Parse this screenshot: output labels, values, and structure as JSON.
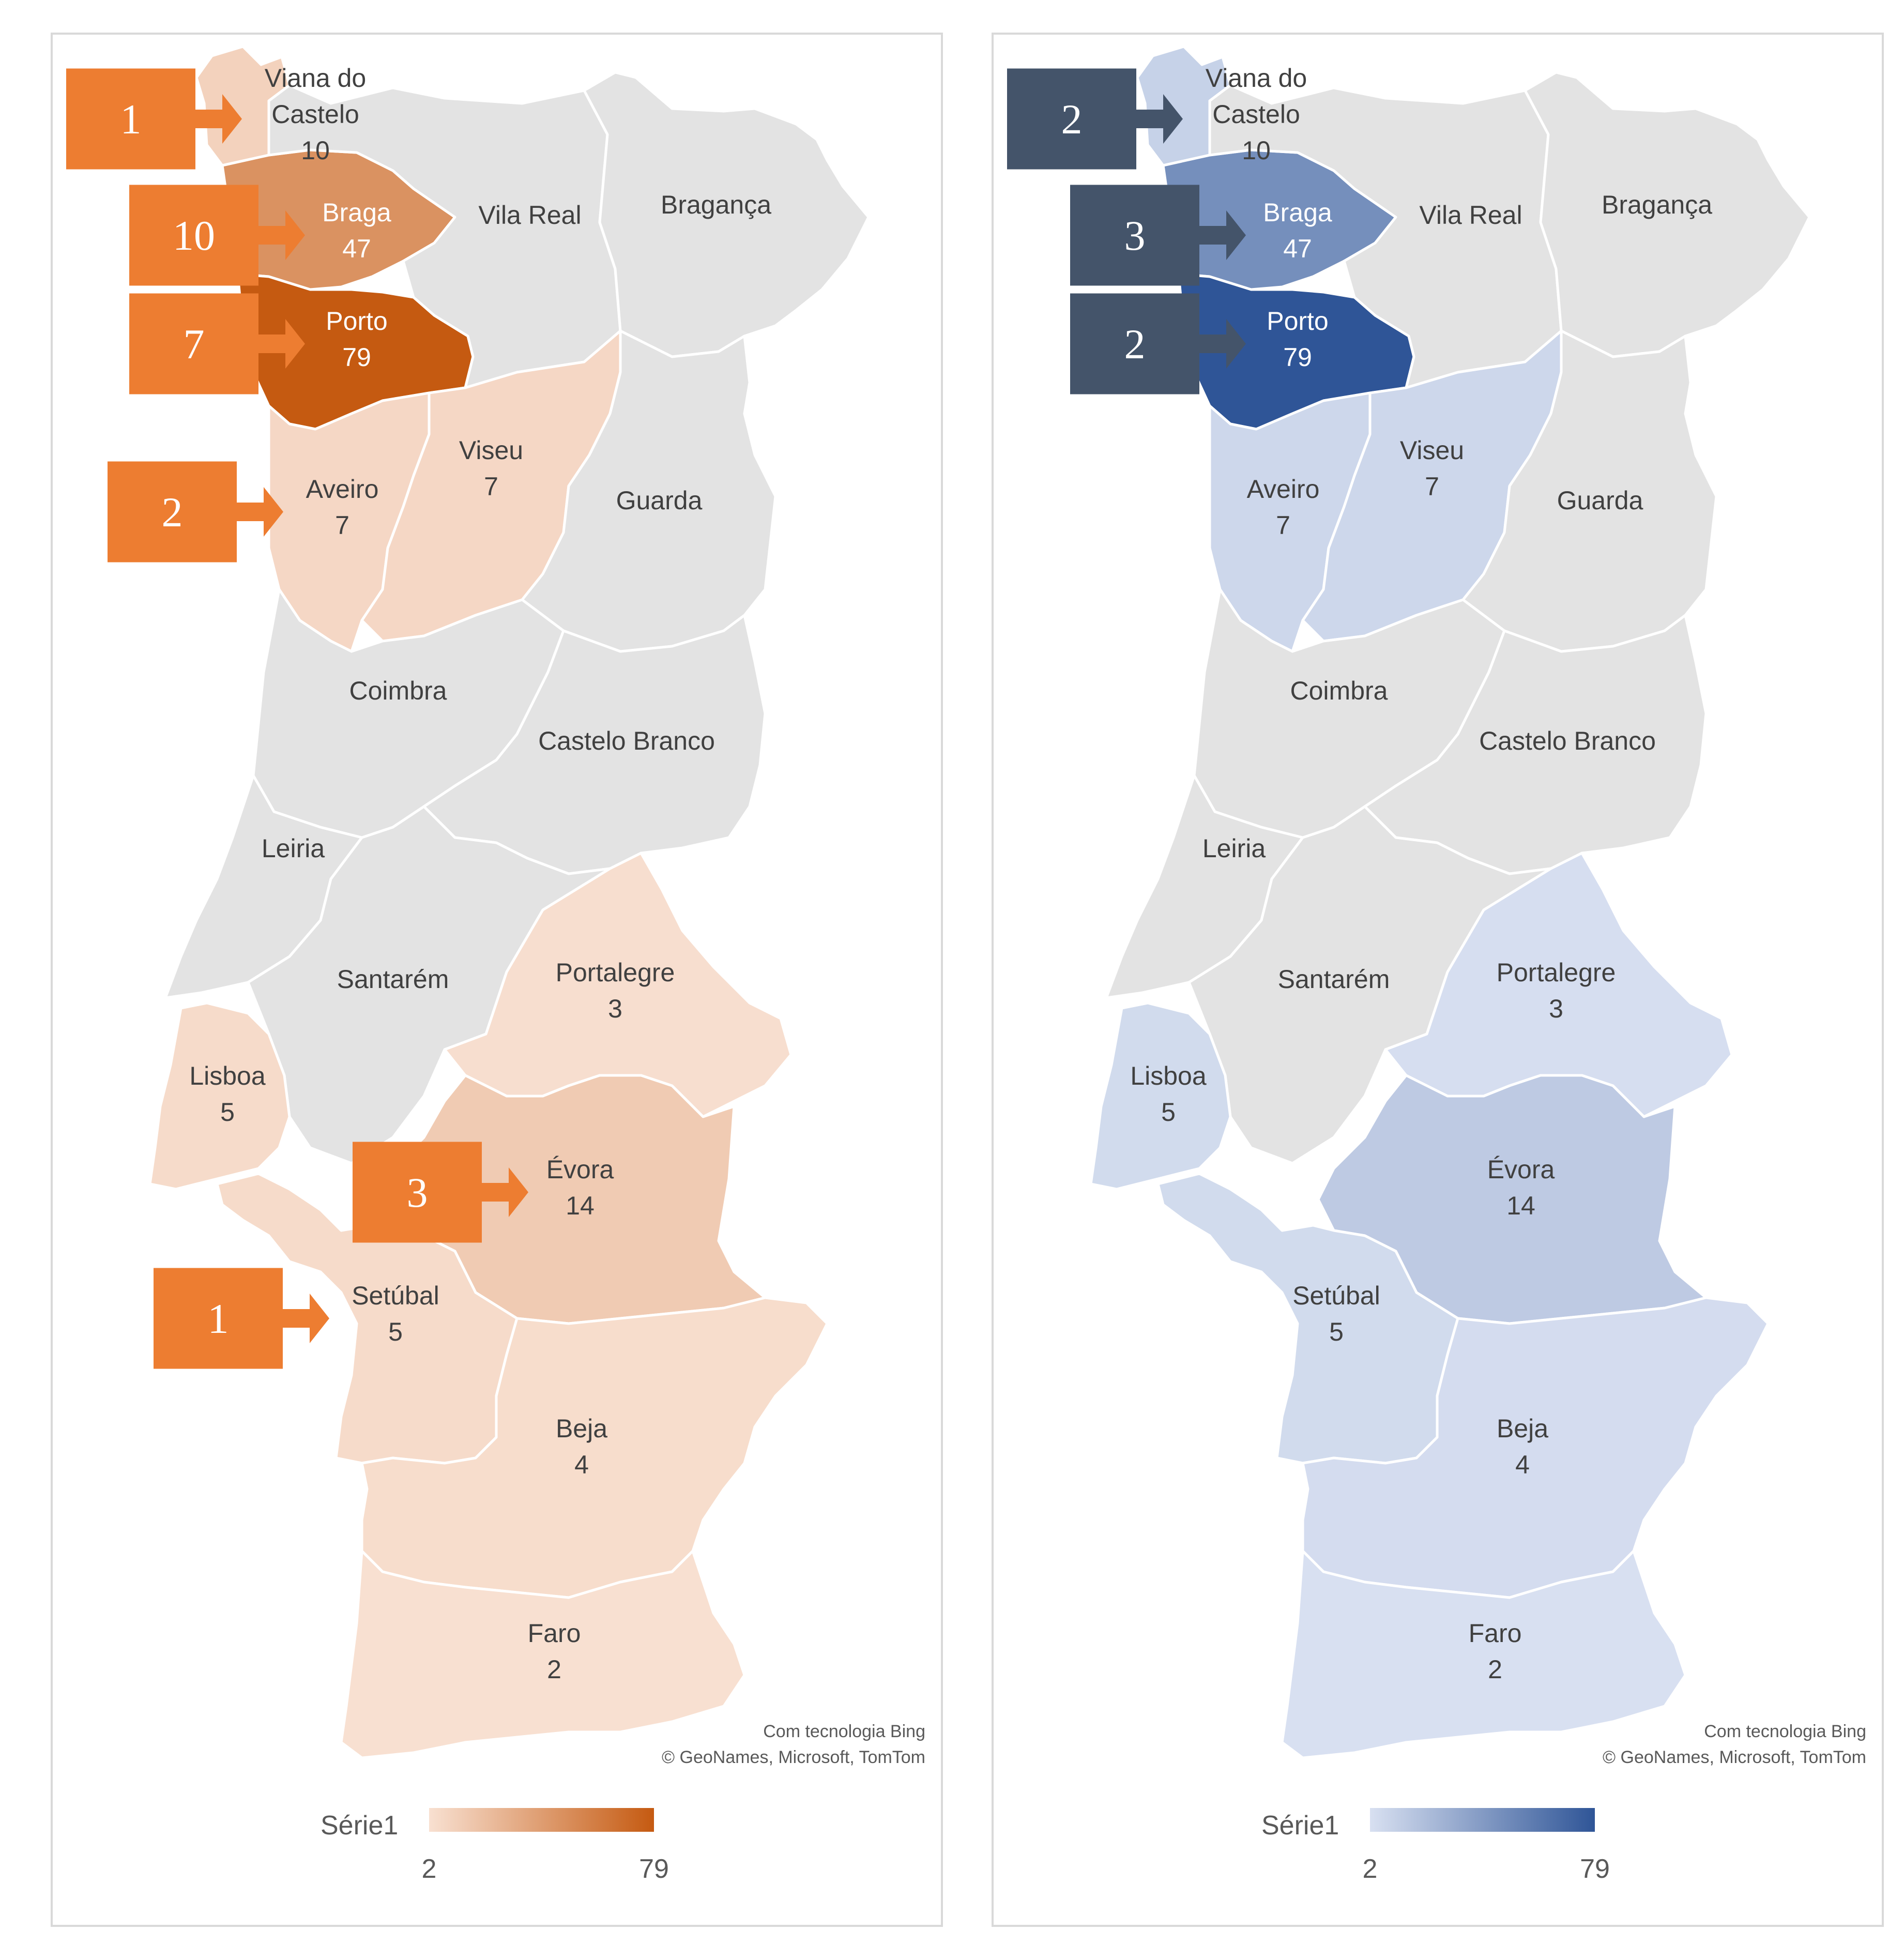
{
  "colors": {
    "no_data": "#e3e3e3",
    "border": "#ffffff",
    "orange_low": "#f8e0d1",
    "orange_high": "#c55a11",
    "blue_low": "#d8e0f1",
    "blue_high": "#2f5597",
    "orange_callout": "#ed7d31",
    "blue_callout": "#44546a",
    "frame": "#d9d9d9"
  },
  "legend": {
    "series_name": "Série1",
    "min_label": "2",
    "max_label": "79",
    "min": 2,
    "max": 79
  },
  "credits": {
    "line1": "Com tecnologia Bing",
    "line2": "© GeoNames, Microsoft, TomTom"
  },
  "regions": [
    {
      "id": "viana",
      "name_lines": [
        "Viana do",
        "Castelo"
      ],
      "value": "10"
    },
    {
      "id": "braga",
      "name_lines": [
        "Braga"
      ],
      "value": "47"
    },
    {
      "id": "porto",
      "name_lines": [
        "Porto"
      ],
      "value": "79"
    },
    {
      "id": "vilareal",
      "name_lines": [
        "Vila Real"
      ],
      "value": null
    },
    {
      "id": "braganca",
      "name_lines": [
        "Bragança"
      ],
      "value": null
    },
    {
      "id": "aveiro",
      "name_lines": [
        "Aveiro"
      ],
      "value": "7"
    },
    {
      "id": "viseu",
      "name_lines": [
        "Viseu"
      ],
      "value": "7"
    },
    {
      "id": "guarda",
      "name_lines": [
        "Guarda"
      ],
      "value": null
    },
    {
      "id": "coimbra",
      "name_lines": [
        "Coimbra"
      ],
      "value": null
    },
    {
      "id": "castelobranco",
      "name_lines": [
        "Castelo Branco"
      ],
      "value": null
    },
    {
      "id": "leiria",
      "name_lines": [
        "Leiria"
      ],
      "value": null
    },
    {
      "id": "santarem",
      "name_lines": [
        "Santarém"
      ],
      "value": null
    },
    {
      "id": "portalegre",
      "name_lines": [
        "Portalegre"
      ],
      "value": "3"
    },
    {
      "id": "lisboa",
      "name_lines": [
        "Lisboa"
      ],
      "value": "5"
    },
    {
      "id": "evora",
      "name_lines": [
        "Évora"
      ],
      "value": "14"
    },
    {
      "id": "setubal",
      "name_lines": [
        "Setúbal"
      ],
      "value": "5"
    },
    {
      "id": "beja",
      "name_lines": [
        "Beja"
      ],
      "value": "4"
    },
    {
      "id": "faro",
      "name_lines": [
        "Faro"
      ],
      "value": "2"
    }
  ],
  "panels": [
    {
      "id": "left",
      "palette": "orange",
      "callouts": [
        {
          "target": "viana",
          "number": "1"
        },
        {
          "target": "braga",
          "number": "10"
        },
        {
          "target": "porto",
          "number": "7"
        },
        {
          "target": "aveiro",
          "number": "2"
        },
        {
          "target": "evora",
          "number": "3"
        },
        {
          "target": "setubal",
          "number": "1"
        }
      ]
    },
    {
      "id": "right",
      "palette": "blue",
      "callouts": [
        {
          "target": "viana",
          "number": "2"
        },
        {
          "target": "braga",
          "number": "3"
        },
        {
          "target": "porto",
          "number": "2"
        }
      ]
    }
  ]
}
